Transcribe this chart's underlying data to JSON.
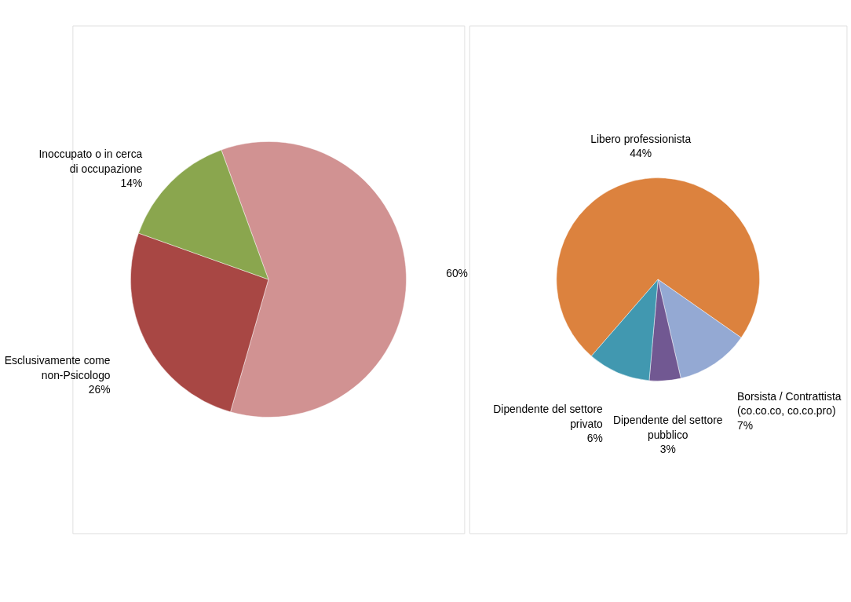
{
  "chart_data": [
    {
      "type": "pie",
      "categories": [
        null,
        "Esclusivamente come non-Psicologo",
        "Inoccupato o in cerca di occupazione"
      ],
      "values": [
        60,
        26,
        14
      ],
      "value_labels": [
        "60%",
        "26%",
        "14%"
      ],
      "colors": [
        "#d19292",
        "#a84744",
        "#8aa64e"
      ]
    },
    {
      "type": "pie",
      "categories": [
        "Libero professionista",
        "Borsista / Contrattista (co.co.co, co.co.pro)",
        "Dipendente del settore pubblico",
        "Dipendente del settore privato"
      ],
      "values": [
        44,
        7,
        3,
        6
      ],
      "value_labels": [
        "44%",
        "7%",
        "3%",
        "6%"
      ],
      "colors": [
        "#dc823e",
        "#94a9d3",
        "#715892",
        "#4198b0"
      ]
    }
  ]
}
